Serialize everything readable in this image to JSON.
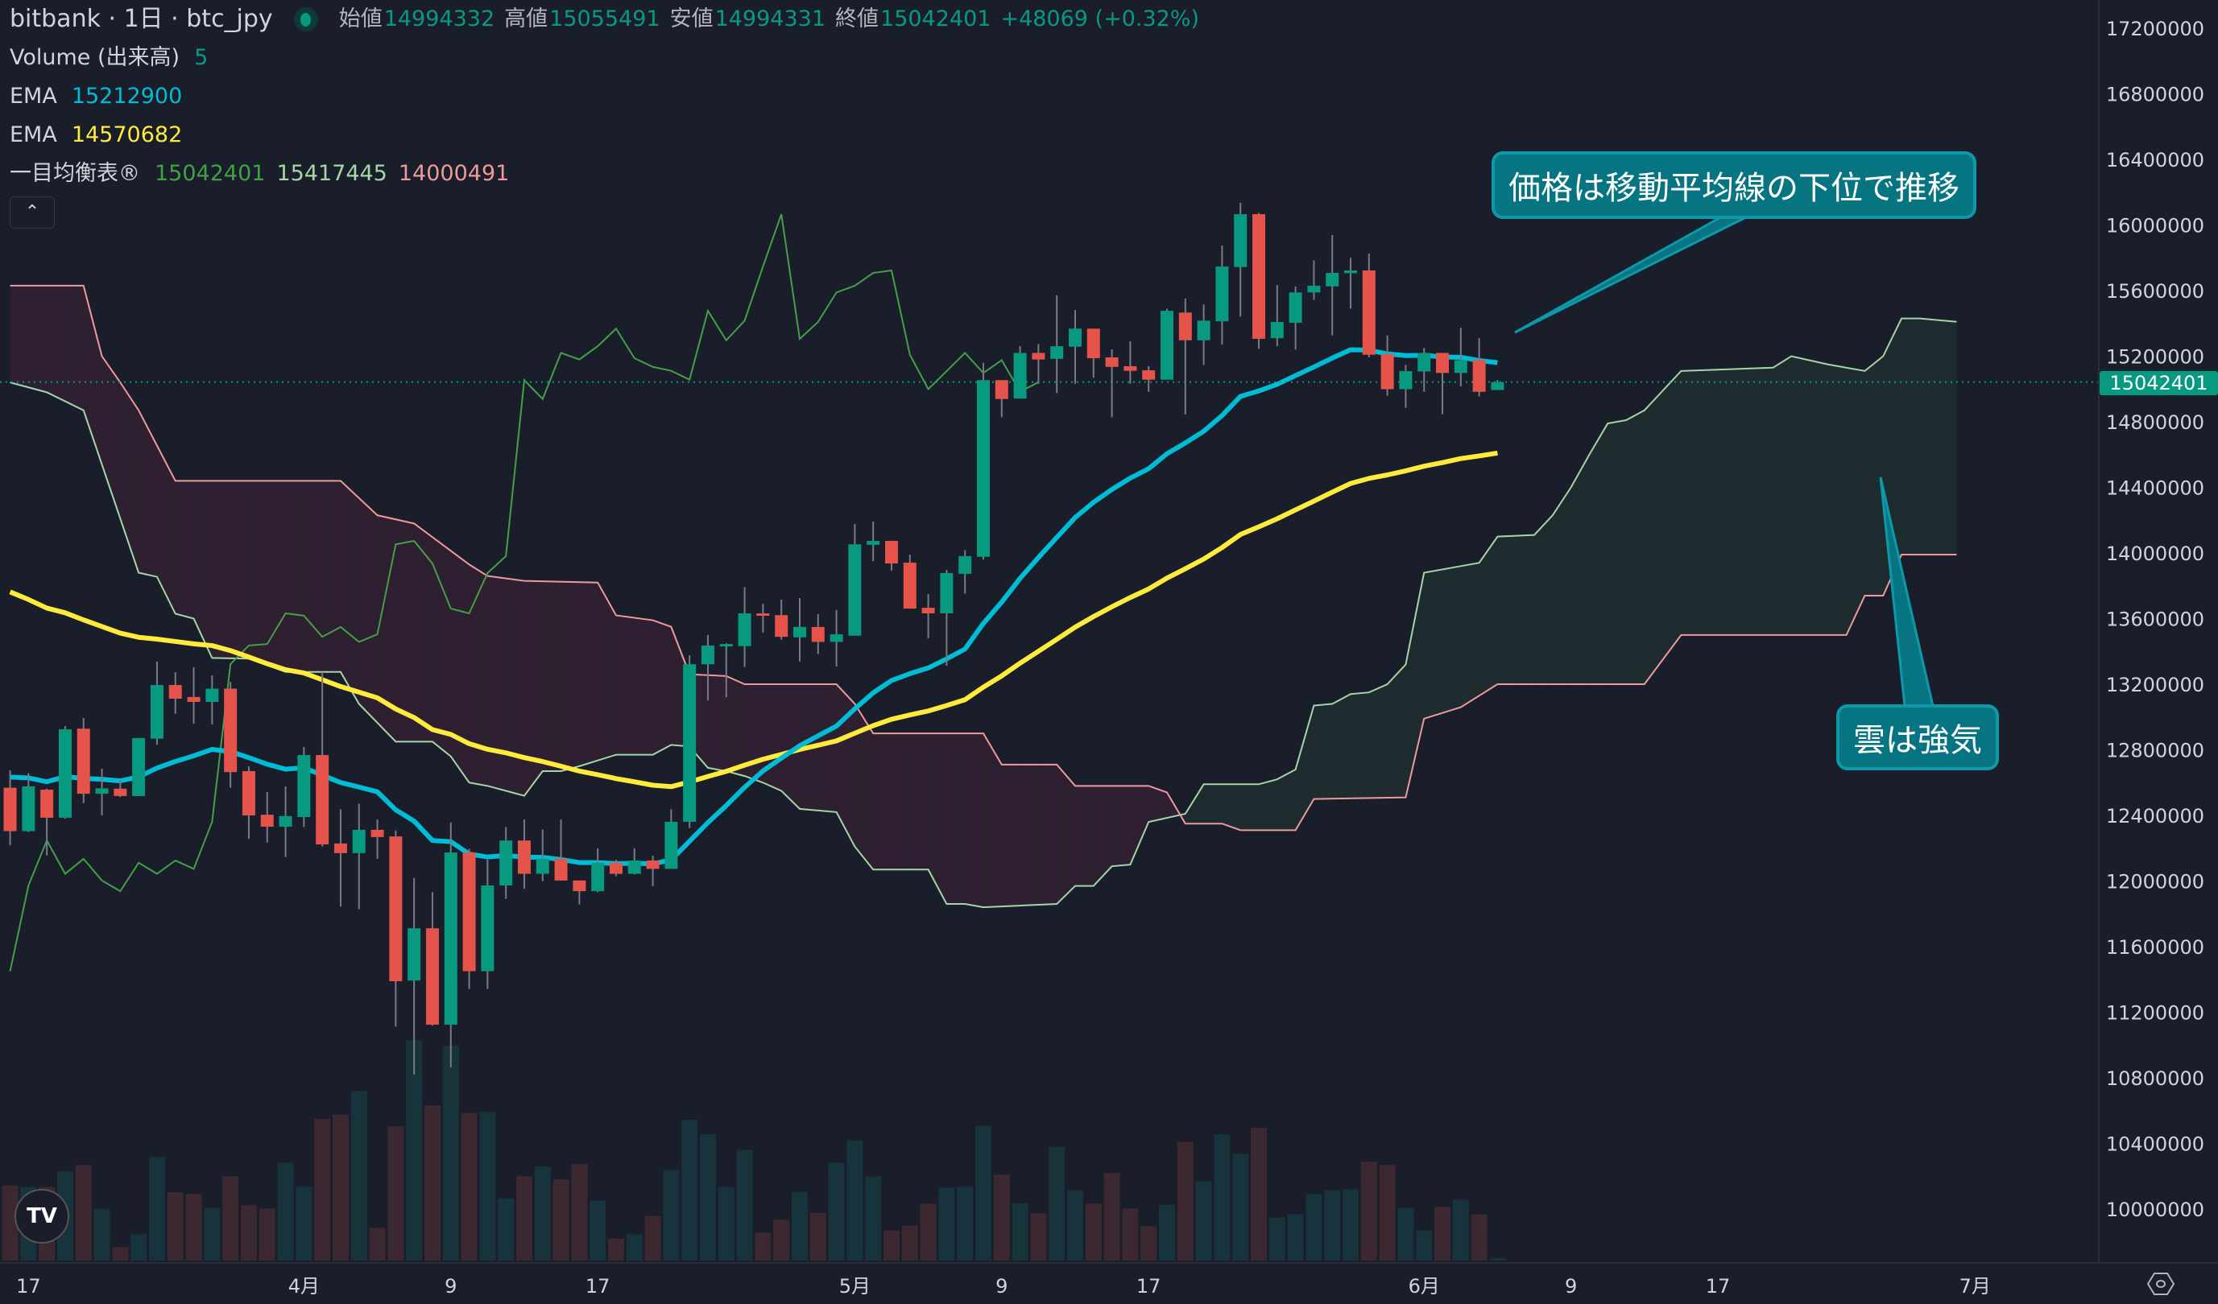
{
  "header": {
    "symbol": "bitbank · 1日 · btc_jpy",
    "ohlc": [
      {
        "label": "始値",
        "value": "14994332"
      },
      {
        "label": "高値",
        "value": "15055491"
      },
      {
        "label": "安値",
        "value": "14994331"
      },
      {
        "label": "終値",
        "value": "15042401"
      }
    ],
    "change": "+48069 (+0.32%)"
  },
  "indicators": {
    "volume": {
      "label": "Volume (出来高)",
      "value": "5"
    },
    "ema_fast": {
      "label": "EMA",
      "value": "15212900"
    },
    "ema_slow": {
      "label": "EMA",
      "value": "14570682"
    },
    "ichimoku": {
      "label": "一目均衡表®",
      "values": [
        "15042401",
        "15417445",
        "14000491"
      ]
    }
  },
  "collapse_icon": "chevron-up",
  "annotations": [
    {
      "text": "価格は移動平均線の下位で推移"
    },
    {
      "text": "雲は強気"
    }
  ],
  "price_label": "15042401",
  "colors": {
    "up": "#089981",
    "down": "#e5534b",
    "wick": "#787b86",
    "ema_fast": "#00bcd4",
    "ema_slow": "#ffeb3b",
    "lagging": "#43a047",
    "span_a": "#a5d6a7",
    "span_b": "#ef9a9a",
    "cloud_up": "#1f2c2f",
    "cloud_down": "#2e2030",
    "vol_up": "#17333b",
    "vol_down": "#3b2830"
  },
  "chart_data": {
    "type": "candlestick",
    "title": "bitbank · 1日 · btc_jpy",
    "price_multiplier": 1000000,
    "xlim": [
      0.45,
      114.7
    ],
    "ylim": [
      9.676,
      17.372
    ],
    "ohlc": [
      [
        12.569,
        12.675,
        12.217,
        12.304
      ],
      [
        12.304,
        12.658,
        12.298,
        12.577
      ],
      [
        12.557,
        12.563,
        12.156,
        12.386
      ],
      [
        12.386,
        12.945,
        12.38,
        12.925
      ],
      [
        12.929,
        12.994,
        12.475,
        12.532
      ],
      [
        12.532,
        12.685,
        12.4,
        12.565
      ],
      [
        12.563,
        12.614,
        12.512,
        12.518
      ],
      [
        12.518,
        12.872,
        12.518,
        12.872
      ],
      [
        12.868,
        13.338,
        12.831,
        13.195
      ],
      [
        13.195,
        13.273,
        13.02,
        13.112
      ],
      [
        13.122,
        13.303,
        12.959,
        13.092
      ],
      [
        13.092,
        13.254,
        12.955,
        13.173
      ],
      [
        13.173,
        13.214,
        12.569,
        12.664
      ],
      [
        12.67,
        12.699,
        12.257,
        12.4
      ],
      [
        12.404,
        12.542,
        12.235,
        12.331
      ],
      [
        12.331,
        12.577,
        12.146,
        12.396
      ],
      [
        12.39,
        12.817,
        12.329,
        12.768
      ],
      [
        12.768,
        13.275,
        12.211,
        12.223
      ],
      [
        12.229,
        12.437,
        11.844,
        12.17
      ],
      [
        12.17,
        12.471,
        11.828,
        12.312
      ],
      [
        12.312,
        12.375,
        12.135,
        12.268
      ],
      [
        12.272,
        12.308,
        11.112,
        11.389
      ],
      [
        11.393,
        12.019,
        10.82,
        11.712
      ],
      [
        11.712,
        11.932,
        11.118,
        11.124
      ],
      [
        11.124,
        12.357,
        10.864,
        12.174
      ],
      [
        12.174,
        12.196,
        11.342,
        11.45
      ],
      [
        11.45,
        12.129,
        11.342,
        11.973
      ],
      [
        11.973,
        12.329,
        11.891,
        12.247
      ],
      [
        12.247,
        12.375,
        11.952,
        12.044
      ],
      [
        12.044,
        12.314,
        11.999,
        12.135
      ],
      [
        12.135,
        12.375,
        12.003,
        12.003
      ],
      [
        12.003,
        12.003,
        11.857,
        11.938
      ],
      [
        11.938,
        12.2,
        11.932,
        12.111
      ],
      [
        12.111,
        12.129,
        12.03,
        12.044
      ],
      [
        12.044,
        12.2,
        12.04,
        12.125
      ],
      [
        12.125,
        12.154,
        11.969,
        12.074
      ],
      [
        12.074,
        12.437,
        12.074,
        12.361
      ],
      [
        12.361,
        13.376,
        12.323,
        13.322
      ],
      [
        13.322,
        13.5,
        13.102,
        13.436
      ],
      [
        13.435,
        13.45,
        13.12,
        13.445
      ],
      [
        13.432,
        13.793,
        13.305,
        13.632
      ],
      [
        13.632,
        13.69,
        13.515,
        13.618
      ],
      [
        13.621,
        13.716,
        13.472,
        13.489
      ],
      [
        13.486,
        13.725,
        13.339,
        13.549
      ],
      [
        13.549,
        13.627,
        13.384,
        13.458
      ],
      [
        13.458,
        13.652,
        13.308,
        13.504
      ],
      [
        13.496,
        14.177,
        13.496,
        14.053
      ],
      [
        14.05,
        14.191,
        13.95,
        14.074
      ],
      [
        14.074,
        14.074,
        13.893,
        13.936
      ],
      [
        13.941,
        13.99,
        13.661,
        13.661
      ],
      [
        13.666,
        13.75,
        13.48,
        13.632
      ],
      [
        13.632,
        13.897,
        13.313,
        13.878
      ],
      [
        13.873,
        14.017,
        13.752,
        13.981
      ],
      [
        13.977,
        15.16,
        13.96,
        15.054
      ],
      [
        15.054,
        15.054,
        14.828,
        14.939
      ],
      [
        14.942,
        15.261,
        14.942,
        15.22
      ],
      [
        15.22,
        15.274,
        15.032,
        15.18
      ],
      [
        15.184,
        15.572,
        14.975,
        15.261
      ],
      [
        15.258,
        15.482,
        15.032,
        15.368
      ],
      [
        15.368,
        15.368,
        15.068,
        15.188
      ],
      [
        15.193,
        15.242,
        14.828,
        15.135
      ],
      [
        15.139,
        15.291,
        15.032,
        15.111
      ],
      [
        15.114,
        15.139,
        14.983,
        15.057
      ],
      [
        15.057,
        15.49,
        15.057,
        15.477
      ],
      [
        15.466,
        15.551,
        14.844,
        15.297
      ],
      [
        15.297,
        15.515,
        15.147,
        15.417
      ],
      [
        15.413,
        15.875,
        15.27,
        15.747
      ],
      [
        15.744,
        16.135,
        15.441,
        16.066
      ],
      [
        16.066,
        16.074,
        15.245,
        15.306
      ],
      [
        15.31,
        15.634,
        15.261,
        15.409
      ],
      [
        15.404,
        15.625,
        15.24,
        15.589
      ],
      [
        15.589,
        15.785,
        15.543,
        15.63
      ],
      [
        15.626,
        15.939,
        15.327,
        15.708
      ],
      [
        15.706,
        15.8,
        15.49,
        15.723
      ],
      [
        15.723,
        15.826,
        15.193,
        15.209
      ],
      [
        15.212,
        15.327,
        14.959,
        14.999
      ],
      [
        14.999,
        15.147,
        14.885,
        15.109
      ],
      [
        15.107,
        15.25,
        14.983,
        15.22
      ],
      [
        15.22,
        15.22,
        14.847,
        15.098
      ],
      [
        15.098,
        15.373,
        15.016,
        15.176
      ],
      [
        15.176,
        15.31,
        14.954,
        14.983
      ],
      [
        14.994,
        15.055,
        14.994,
        15.042
      ]
    ],
    "volume": [
      140,
      137,
      137,
      166,
      178,
      97,
      25,
      49,
      193,
      127,
      124,
      98,
      157,
      103,
      97,
      182,
      137,
      264,
      272,
      316,
      61,
      250,
      410,
      289,
      400,
      275,
      277,
      116,
      157,
      175,
      151,
      180,
      112,
      41,
      49,
      83,
      169,
      262,
      235,
      137,
      206,
      52,
      76,
      128,
      89,
      182,
      224,
      157,
      56,
      65,
      106,
      136,
      137,
      251,
      160,
      107,
      88,
      212,
      131,
      106,
      163,
      97,
      64,
      104,
      221,
      148,
      235,
      199,
      247,
      80,
      86,
      124,
      131,
      133,
      184,
      178,
      98,
      56,
      100,
      113,
      86,
      5
    ],
    "ema_start": [
      12.634,
      13.763
    ],
    "ema_periods": [
      20,
      50
    ],
    "lagging_shift": 25,
    "span_a": [
      [
        1,
        15.04
      ],
      [
        3,
        14.98
      ],
      [
        5,
        14.87
      ],
      [
        8,
        13.88
      ],
      [
        9,
        13.855
      ],
      [
        10,
        13.63
      ],
      [
        11,
        13.6
      ],
      [
        12,
        13.36
      ],
      [
        14,
        13.356
      ],
      [
        16,
        13.275
      ],
      [
        19,
        13.275
      ],
      [
        20,
        13.08
      ],
      [
        22,
        12.85
      ],
      [
        24,
        12.85
      ],
      [
        25,
        12.76
      ],
      [
        26,
        12.6
      ],
      [
        27,
        12.58
      ],
      [
        29,
        12.52
      ],
      [
        30,
        12.67
      ],
      [
        31,
        12.67
      ],
      [
        32,
        12.7
      ],
      [
        34,
        12.77
      ],
      [
        36,
        12.77
      ],
      [
        37,
        12.83
      ],
      [
        38,
        12.82
      ],
      [
        39,
        12.69
      ],
      [
        40,
        12.67
      ],
      [
        41,
        12.64
      ],
      [
        42,
        12.6
      ],
      [
        43,
        12.55
      ],
      [
        44,
        12.44
      ],
      [
        46,
        12.42
      ],
      [
        47,
        12.21
      ],
      [
        48,
        12.07
      ],
      [
        51,
        12.07
      ],
      [
        52,
        11.86
      ],
      [
        53,
        11.86
      ],
      [
        54,
        11.84
      ],
      [
        58,
        11.86
      ],
      [
        59,
        11.97
      ],
      [
        60,
        11.97
      ],
      [
        61,
        12.09
      ],
      [
        62,
        12.1
      ],
      [
        63,
        12.36
      ],
      [
        65,
        12.41
      ],
      [
        66,
        12.59
      ],
      [
        69,
        12.59
      ],
      [
        70,
        12.62
      ],
      [
        71,
        12.68
      ],
      [
        72,
        13.07
      ],
      [
        73,
        13.08
      ],
      [
        74,
        13.14
      ],
      [
        75,
        13.15
      ],
      [
        76,
        13.2
      ],
      [
        77,
        13.32
      ],
      [
        78,
        13.88
      ],
      [
        80,
        13.92
      ],
      [
        81,
        13.94
      ],
      [
        82,
        14.1
      ],
      [
        84,
        14.11
      ],
      [
        85,
        14.23
      ],
      [
        86,
        14.4
      ],
      [
        87,
        14.6
      ],
      [
        88,
        14.79
      ],
      [
        89,
        14.81
      ],
      [
        90,
        14.87
      ],
      [
        92,
        15.11
      ],
      [
        97,
        15.13
      ],
      [
        98,
        15.2
      ],
      [
        100,
        15.15
      ],
      [
        102,
        15.11
      ],
      [
        103,
        15.2
      ],
      [
        104,
        15.43
      ],
      [
        105,
        15.43
      ],
      [
        107,
        15.41
      ]
    ],
    "span_b": [
      [
        1,
        15.63
      ],
      [
        5,
        15.63
      ],
      [
        6,
        15.2
      ],
      [
        7,
        15.04
      ],
      [
        8,
        14.87
      ],
      [
        10,
        14.44
      ],
      [
        19,
        14.44
      ],
      [
        21,
        14.23
      ],
      [
        23,
        14.18
      ],
      [
        26,
        13.93
      ],
      [
        27,
        13.86
      ],
      [
        29,
        13.83
      ],
      [
        33,
        13.82
      ],
      [
        34,
        13.62
      ],
      [
        36,
        13.59
      ],
      [
        37,
        13.55
      ],
      [
        38,
        13.26
      ],
      [
        40,
        13.25
      ],
      [
        41,
        13.2
      ],
      [
        46,
        13.2
      ],
      [
        47,
        13.08
      ],
      [
        48,
        12.9
      ],
      [
        54,
        12.9
      ],
      [
        55,
        12.71
      ],
      [
        58,
        12.71
      ],
      [
        59,
        12.58
      ],
      [
        63,
        12.58
      ],
      [
        64,
        12.54
      ],
      [
        65,
        12.35
      ],
      [
        67,
        12.35
      ],
      [
        68,
        12.31
      ],
      [
        71,
        12.31
      ],
      [
        72,
        12.5
      ],
      [
        77,
        12.51
      ],
      [
        78,
        12.99
      ],
      [
        80,
        13.06
      ],
      [
        82,
        13.2
      ],
      [
        90,
        13.2
      ],
      [
        92,
        13.5
      ],
      [
        101,
        13.5
      ],
      [
        102,
        13.74
      ],
      [
        103,
        13.74
      ],
      [
        104,
        13.99
      ],
      [
        107,
        13.99
      ]
    ],
    "last_price": 15.042401,
    "yticks": [
      "17200000",
      "16800000",
      "16400000",
      "16000000",
      "15600000",
      "15200000",
      "14800000",
      "14400000",
      "14000000",
      "13600000",
      "13200000",
      "12800000",
      "12400000",
      "12000000",
      "11600000",
      "11200000",
      "10800000",
      "10400000",
      "10000000"
    ],
    "xticks": [
      {
        "idx": 2,
        "label": "17"
      },
      {
        "idx": 17,
        "label": "4月"
      },
      {
        "idx": 25,
        "label": "9"
      },
      {
        "idx": 33,
        "label": "17"
      },
      {
        "idx": 47,
        "label": "5月"
      },
      {
        "idx": 55,
        "label": "9"
      },
      {
        "idx": 63,
        "label": "17"
      },
      {
        "idx": 78,
        "label": "6月"
      },
      {
        "idx": 86,
        "label": "9"
      },
      {
        "idx": 94,
        "label": "17"
      },
      {
        "idx": 108,
        "label": "7月"
      }
    ],
    "xlabel": "",
    "ylabel": "",
    "grid": false
  }
}
